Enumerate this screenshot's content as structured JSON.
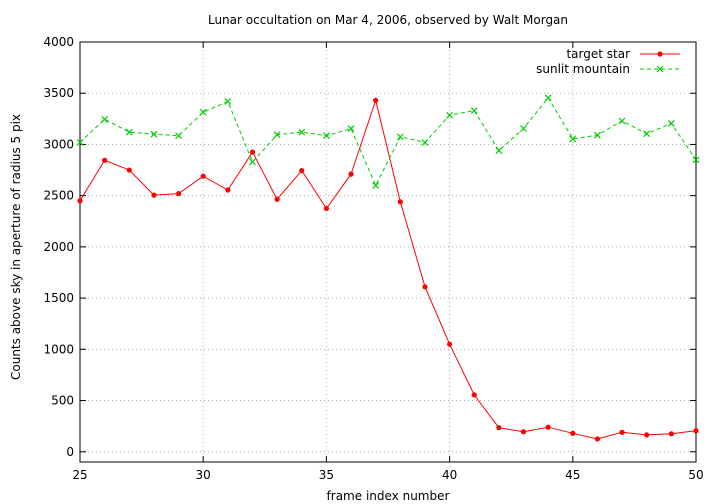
{
  "chart_data": {
    "type": "line",
    "title": "Lunar occultation on Mar 4, 2006, observed by Walt Morgan",
    "xlabel": "frame index number",
    "ylabel": "Counts above sky in aperture of radius 5 pix",
    "xlim": [
      25,
      50
    ],
    "ylim": [
      -100,
      4000
    ],
    "xticks": [
      25,
      30,
      35,
      40,
      45,
      50
    ],
    "yticks": [
      0,
      500,
      1000,
      1500,
      2000,
      2500,
      3000,
      3500,
      4000
    ],
    "grid": true,
    "legend_position": "top-right",
    "x": [
      25,
      26,
      27,
      28,
      29,
      30,
      31,
      32,
      33,
      34,
      35,
      36,
      37,
      38,
      39,
      40,
      41,
      42,
      43,
      44,
      45,
      46,
      47,
      48,
      49,
      50
    ],
    "series": [
      {
        "name": "target star",
        "color": "#ff0000",
        "marker": "dot",
        "dash": "solid",
        "values": [
          2450,
          2845,
          2750,
          2505,
          2520,
          2690,
          2555,
          2925,
          2465,
          2745,
          2375,
          2710,
          3430,
          2440,
          1610,
          1050,
          555,
          235,
          195,
          240,
          180,
          125,
          190,
          165,
          175,
          205
        ]
      },
      {
        "name": "sunlit mountain",
        "color": "#00cc00",
        "marker": "x",
        "dash": "dashed",
        "values": [
          3020,
          3245,
          3120,
          3100,
          3085,
          3315,
          3420,
          2830,
          3095,
          3120,
          3085,
          3155,
          2600,
          3075,
          3020,
          3285,
          3330,
          2940,
          3155,
          3455,
          3055,
          3090,
          3230,
          3105,
          3205,
          2850
        ]
      }
    ]
  }
}
